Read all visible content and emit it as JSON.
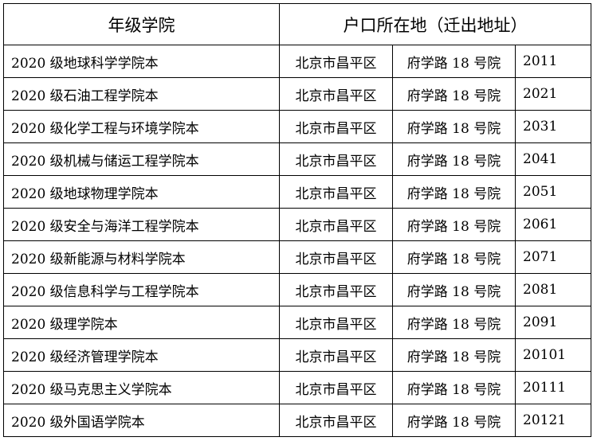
{
  "headers": {
    "college": "年级学院",
    "hukou": "户口所在地（迁出地址）"
  },
  "rows": [
    {
      "college": "2020 级地球科学学院本",
      "district": "北京市昌平区",
      "street": "府学路 18 号院",
      "code": "2011"
    },
    {
      "college": "2020 级石油工程学院本",
      "district": "北京市昌平区",
      "street": "府学路 18 号院",
      "code": "2021"
    },
    {
      "college": "2020 级化学工程与环境学院本",
      "district": "北京市昌平区",
      "street": "府学路 18 号院",
      "code": "2031"
    },
    {
      "college": "2020 级机械与储运工程学院本",
      "district": "北京市昌平区",
      "street": "府学路 18 号院",
      "code": "2041"
    },
    {
      "college": "2020 级地球物理学院本",
      "district": "北京市昌平区",
      "street": "府学路 18 号院",
      "code": "2051"
    },
    {
      "college": "2020 级安全与海洋工程学院本",
      "district": "北京市昌平区",
      "street": "府学路 18 号院",
      "code": "2061"
    },
    {
      "college": "2020 级新能源与材料学院本",
      "district": "北京市昌平区",
      "street": "府学路 18 号院",
      "code": "2071"
    },
    {
      "college": "2020 级信息科学与工程学院本",
      "district": "北京市昌平区",
      "street": "府学路 18 号院",
      "code": "2081"
    },
    {
      "college": "2020 级理学院本",
      "district": "北京市昌平区",
      "street": "府学路 18 号院",
      "code": "2091"
    },
    {
      "college": "2020 级经济管理学院本",
      "district": "北京市昌平区",
      "street": "府学路 18 号院",
      "code": "20101"
    },
    {
      "college": "2020 级马克思主义学院本",
      "district": "北京市昌平区",
      "street": "府学路 18 号院",
      "code": "20111"
    },
    {
      "college": "2020 级外国语学院本",
      "district": "北京市昌平区",
      "street": "府学路 18 号院",
      "code": "20121"
    }
  ]
}
